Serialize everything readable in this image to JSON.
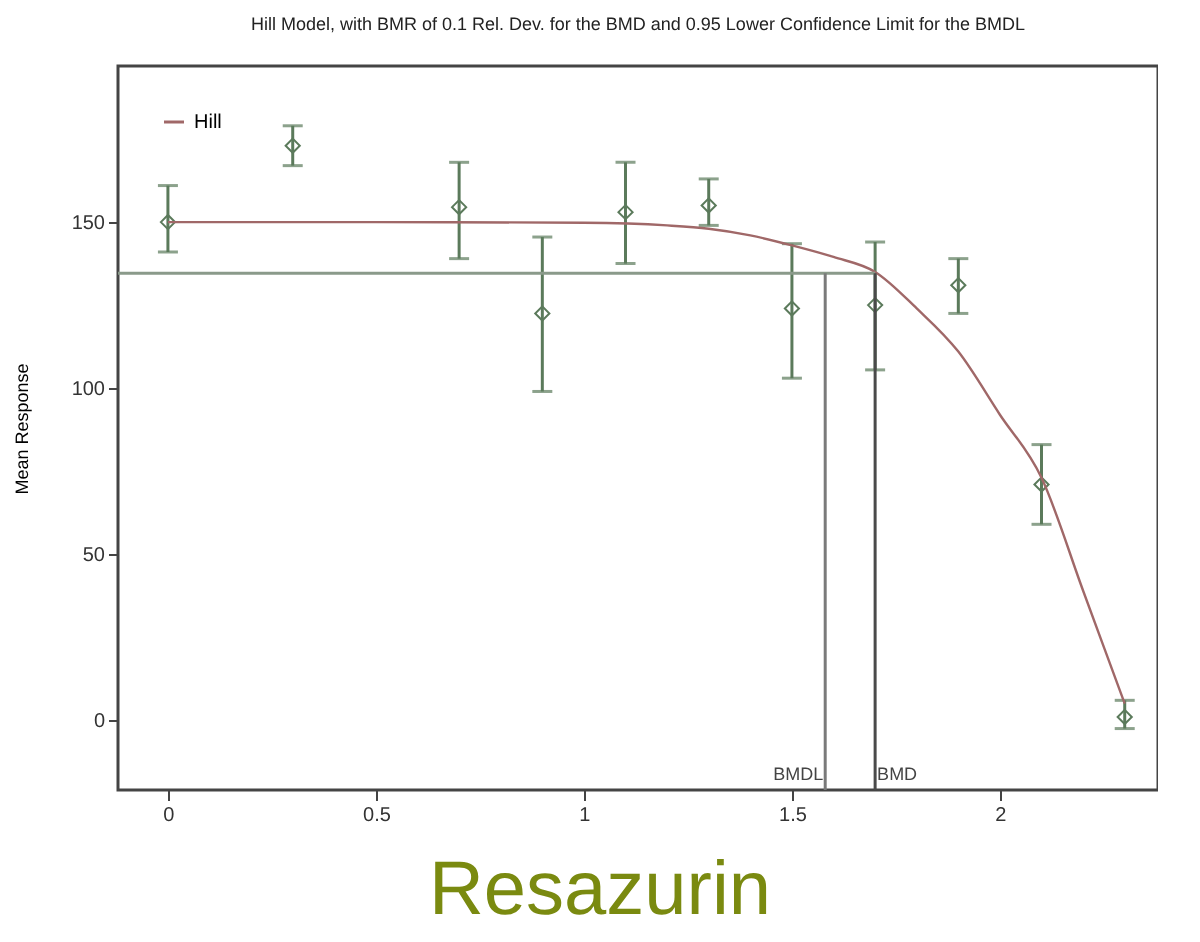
{
  "chart_data": {
    "type": "scatter",
    "title": "Hill Model, with BMR of 0.1 Rel. Dev. for the BMD and 0.95 Lower Confidence Limit for the BMDL",
    "ylabel": "Mean Response",
    "annotations": [
      "Resazurin"
    ],
    "series": [
      {
        "color": "#5b7a5b",
        "x": [
          0,
          0.3,
          0.7,
          0.9,
          1.1,
          1.3,
          1.5,
          1.7,
          1.9,
          2.1,
          2.3
        ],
        "values": [
          150,
          173,
          154.5,
          122.5,
          153,
          155,
          124,
          125,
          131,
          71,
          1
        ],
        "errors": [
          [
            141,
            161
          ],
          [
            167,
            179
          ],
          [
            139,
            168
          ],
          [
            99,
            145.5
          ],
          [
            137.5,
            168
          ],
          [
            149,
            163
          ],
          [
            103,
            143.5
          ],
          [
            105.5,
            144
          ],
          [
            122.5,
            139
          ],
          [
            59,
            83
          ],
          [
            -2.5,
            6
          ]
        ]
      },
      {
        "type": "line",
        "name": "Hill",
        "color": "#a06868",
        "marker": "none",
        "x": [
          0,
          0.5,
          1.0,
          1.2,
          1.3,
          1.4,
          1.5,
          1.6,
          1.7,
          1.8,
          1.9,
          2.0,
          2.1,
          2.2,
          2.3
        ],
        "values": [
          150,
          150,
          149.8,
          149,
          148,
          146,
          143,
          139.5,
          135,
          124,
          111,
          92,
          73,
          39,
          5
        ]
      }
    ],
    "xlim": [
      -0.12,
      2.38
    ],
    "ylim": [
      -21,
      197
    ],
    "xticks": [
      0,
      0.5,
      1,
      1.5,
      2
    ],
    "yticks": [
      0,
      50,
      100,
      150
    ],
    "ref_lines": [
      {
        "axis": "y",
        "value": 134.6,
        "label": null,
        "color": "#8a9a8a"
      },
      {
        "axis": "x",
        "value": 1.58,
        "label": "BMDL",
        "color": "#7a7a7a"
      },
      {
        "axis": "x",
        "value": 1.7,
        "label": "BMD",
        "color": "#4a4a4a"
      }
    ],
    "marker": "diamond",
    "grid": false,
    "legend": "top left"
  }
}
